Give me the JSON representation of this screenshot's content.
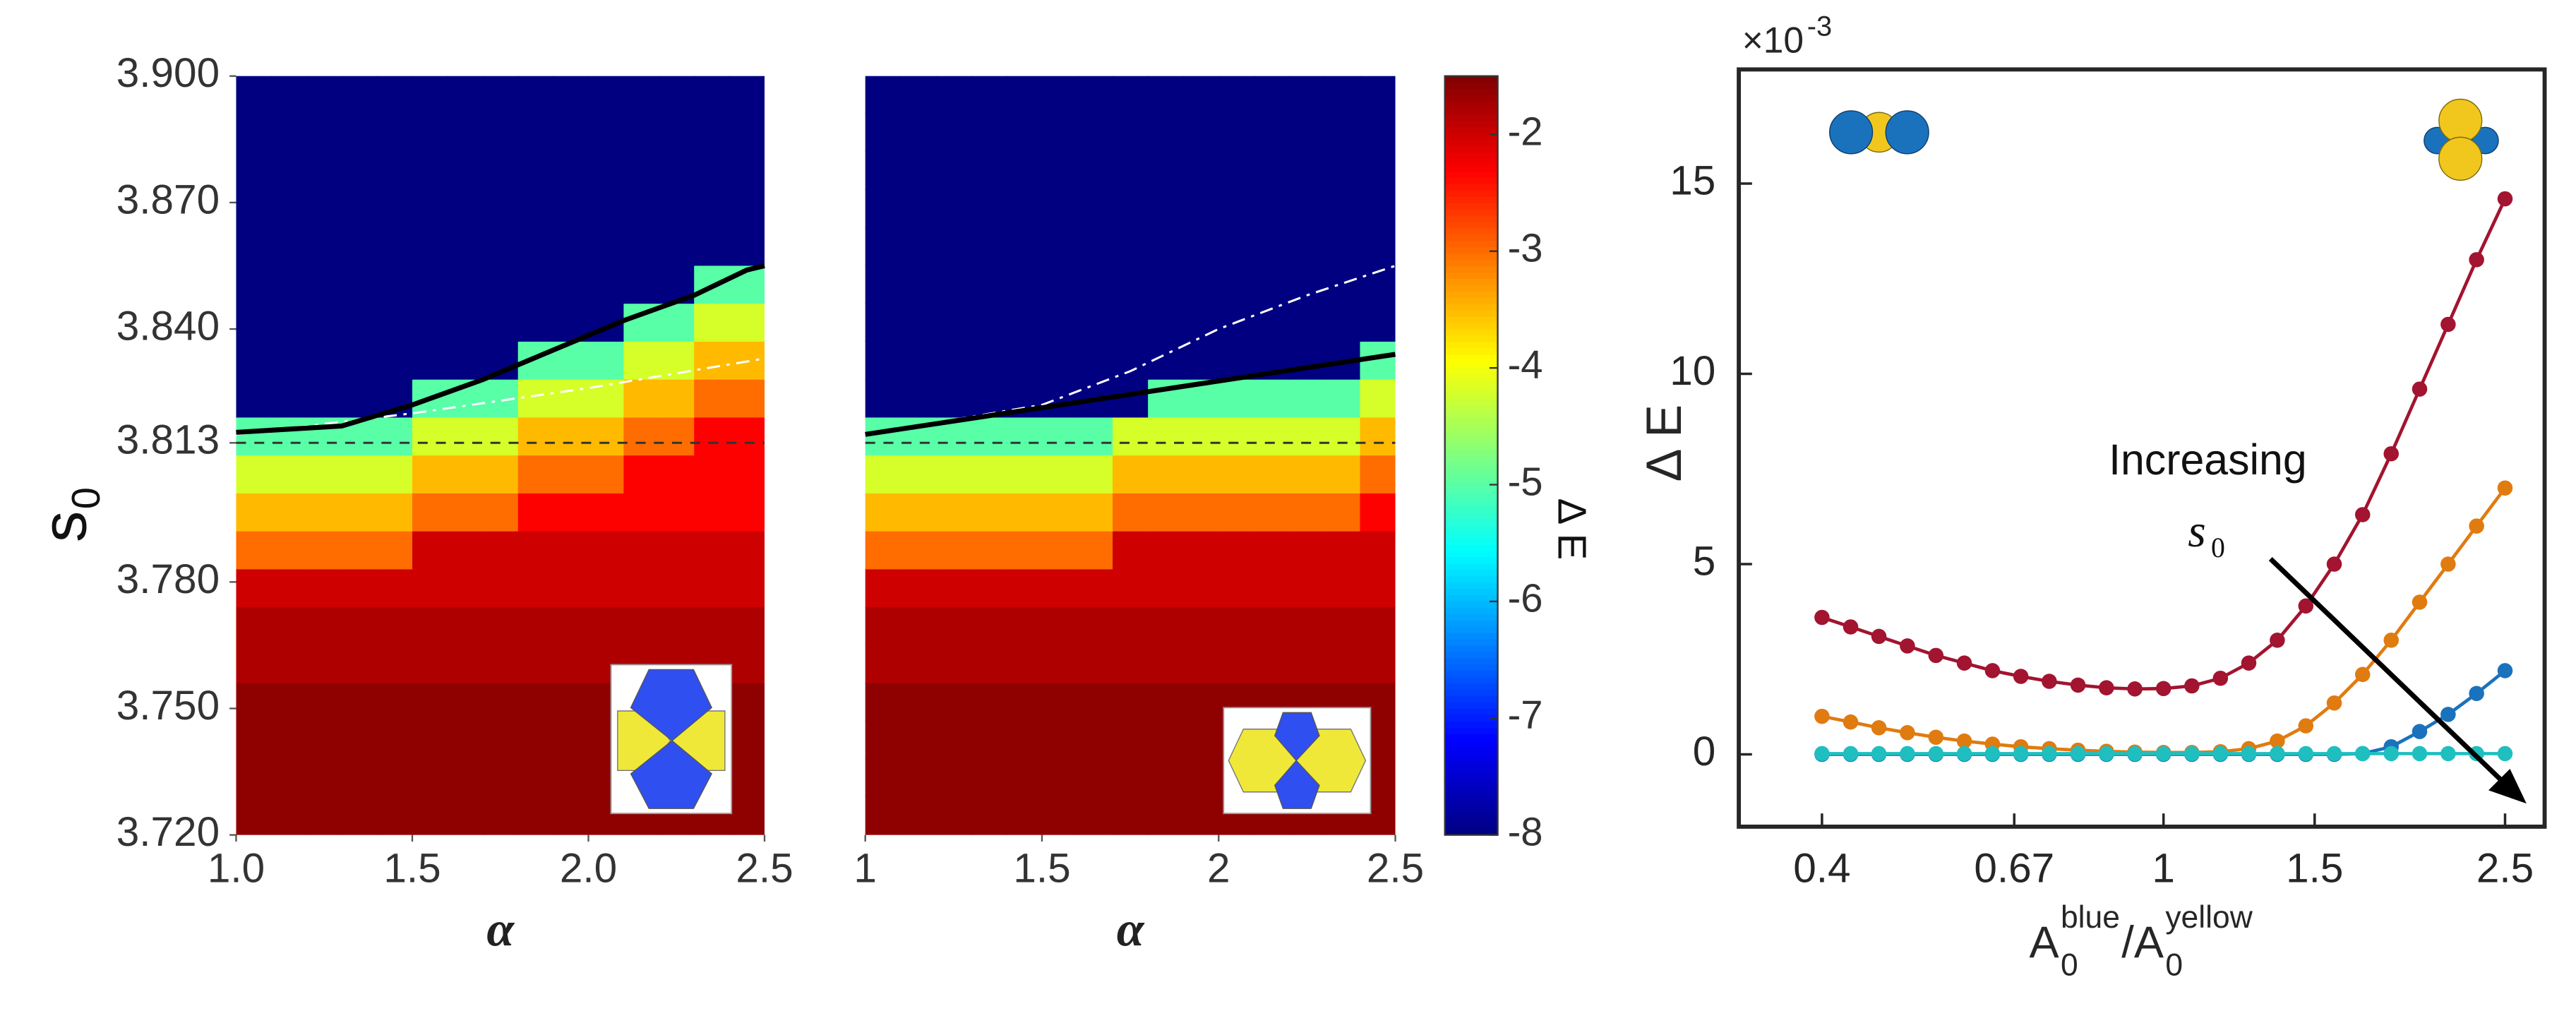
{
  "chart_data": [
    {
      "type": "heatmap",
      "colormap": "jet",
      "xlabel": "α",
      "ylabel": "s",
      "ylabel_sub": "0",
      "xlim": [
        1.0,
        2.5
      ],
      "ylim": [
        3.72,
        3.9
      ],
      "xticks": [
        {
          "value": 1,
          "label": "1.0"
        },
        1.5,
        {
          "value": 2,
          "label": "2.0"
        },
        2.5
      ],
      "yticks": [
        {
          "value": 3.72,
          "label": "3.720"
        },
        {
          "value": 3.75,
          "label": "3.750"
        },
        {
          "value": 3.78,
          "label": "3.780"
        },
        3.813,
        {
          "value": 3.84,
          "label": "3.840"
        },
        {
          "value": 3.87,
          "label": "3.870"
        },
        {
          "value": 3.9,
          "label": "3.900"
        }
      ],
      "x": [
        1.05,
        1.15,
        1.25,
        1.35,
        1.45,
        1.55,
        1.65,
        1.75,
        1.85,
        1.95,
        2.05,
        2.15,
        2.25,
        2.35,
        2.45
      ],
      "y": [
        3.7245,
        3.7335,
        3.7425,
        3.7515,
        3.7605,
        3.7695,
        3.7785,
        3.7875,
        3.7965,
        3.8055,
        3.8145,
        3.8235,
        3.8325,
        3.8415,
        3.8505,
        3.8595,
        3.8685,
        3.8775,
        3.8865,
        3.8955
      ],
      "values": [
        [
          -1.6,
          -1.6,
          -1.6,
          -1.6,
          -1.6,
          -1.6,
          -1.6,
          -1.6,
          -1.6,
          -1.6,
          -1.6,
          -1.6,
          -1.6,
          -1.6,
          -1.6
        ],
        [
          -1.6,
          -1.6,
          -1.6,
          -1.6,
          -1.6,
          -1.6,
          -1.6,
          -1.6,
          -1.6,
          -1.6,
          -1.6,
          -1.6,
          -1.6,
          -1.6,
          -1.6
        ],
        [
          -1.6,
          -1.6,
          -1.6,
          -1.6,
          -1.6,
          -1.6,
          -1.6,
          -1.6,
          -1.6,
          -1.6,
          -1.6,
          -1.6,
          -1.6,
          -1.6,
          -1.6
        ],
        [
          -1.6,
          -1.6,
          -1.6,
          -1.6,
          -1.6,
          -1.6,
          -1.6,
          -1.6,
          -1.6,
          -1.6,
          -1.6,
          -1.6,
          -1.6,
          -1.6,
          -1.6
        ],
        [
          -1.8,
          -1.8,
          -1.8,
          -1.8,
          -1.8,
          -1.8,
          -1.8,
          -1.8,
          -1.8,
          -1.8,
          -1.8,
          -1.8,
          -1.8,
          -1.8,
          -1.8
        ],
        [
          -1.8,
          -1.8,
          -1.8,
          -1.8,
          -1.8,
          -1.8,
          -1.8,
          -1.8,
          -1.8,
          -1.8,
          -1.8,
          -1.8,
          -1.8,
          -1.8,
          -1.8
        ],
        [
          -2,
          -2,
          -2,
          -2,
          -2,
          -2,
          -2,
          -2,
          -2,
          -2,
          -2,
          -2,
          -2,
          -2,
          -2
        ],
        [
          -3,
          -3,
          -3,
          -3,
          -3,
          -2,
          -2,
          -2,
          -2,
          -2,
          -2,
          -2,
          -2,
          -2,
          -2
        ],
        [
          -3.5,
          -3.5,
          -3.5,
          -3.5,
          -3.5,
          -3,
          -3,
          -3,
          -2.3,
          -2.3,
          -2.3,
          -2.3,
          -2.3,
          -2.3,
          -2.3
        ],
        [
          -4.2,
          -4.2,
          -4.2,
          -4.2,
          -4.2,
          -3.5,
          -3.5,
          -3.5,
          -3,
          -3,
          -3,
          -2.3,
          -2.3,
          -2.3,
          -2.3
        ],
        [
          -5,
          -5,
          -5,
          -5,
          -5,
          -4.2,
          -4.2,
          -4.2,
          -3.5,
          -3.5,
          -3.5,
          -3,
          -3,
          -2.3,
          -2.3
        ],
        [
          -8,
          -8,
          -8,
          -8,
          -8,
          -5,
          -5,
          -5,
          -4.2,
          -4.2,
          -4.2,
          -3.5,
          -3.5,
          -3,
          -3
        ],
        [
          -8,
          -8,
          -8,
          -8,
          -8,
          -8,
          -8,
          -8,
          -5,
          -5,
          -5,
          -4.2,
          -4.2,
          -3.5,
          -3.5
        ],
        [
          -8,
          -8,
          -8,
          -8,
          -8,
          -8,
          -8,
          -8,
          -8,
          -8,
          -8,
          -5,
          -5,
          -4.2,
          -4.2
        ],
        [
          -8,
          -8,
          -8,
          -8,
          -8,
          -8,
          -8,
          -8,
          -8,
          -8,
          -8,
          -8,
          -8,
          -5,
          -5
        ],
        [
          -8,
          -8,
          -8,
          -8,
          -8,
          -8,
          -8,
          -8,
          -8,
          -8,
          -8,
          -8,
          -8,
          -8,
          -8
        ],
        [
          -8,
          -8,
          -8,
          -8,
          -8,
          -8,
          -8,
          -8,
          -8,
          -8,
          -8,
          -8,
          -8,
          -8,
          -8
        ],
        [
          -8,
          -8,
          -8,
          -8,
          -8,
          -8,
          -8,
          -8,
          -8,
          -8,
          -8,
          -8,
          -8,
          -8,
          -8
        ],
        [
          -8,
          -8,
          -8,
          -8,
          -8,
          -8,
          -8,
          -8,
          -8,
          -8,
          -8,
          -8,
          -8,
          -8,
          -8
        ],
        [
          -8,
          -8,
          -8,
          -8,
          -8,
          -8,
          -8,
          -8,
          -8,
          -8,
          -8,
          -8,
          -8,
          -8,
          -8
        ]
      ],
      "hline": {
        "y": 3.813,
        "color": "#333333",
        "style": "dashed"
      },
      "lines": [
        {
          "color": "#ffffff",
          "style": "dashdot",
          "x": [
            1.0,
            1.5,
            2.0,
            2.5
          ],
          "y": [
            3.815,
            3.82,
            3.826,
            3.833
          ]
        },
        {
          "color": "#000000",
          "style": "solid",
          "x": [
            1.0,
            1.3,
            1.5,
            1.7,
            1.9,
            2.1,
            2.3,
            2.45,
            2.5
          ],
          "y": [
            3.8155,
            3.817,
            3.822,
            3.828,
            3.835,
            3.842,
            3.848,
            3.854,
            3.855
          ]
        }
      ]
    },
    {
      "type": "heatmap",
      "colormap": "jet",
      "xlabel": "α",
      "xlim": [
        1.0,
        2.5
      ],
      "ylim": [
        3.72,
        3.9
      ],
      "xticks": [
        1,
        1.5,
        2,
        2.5
      ],
      "x": [
        1.05,
        1.15,
        1.25,
        1.35,
        1.45,
        1.55,
        1.65,
        1.75,
        1.85,
        1.95,
        2.05,
        2.15,
        2.25,
        2.35,
        2.45
      ],
      "y": [
        3.7245,
        3.7335,
        3.7425,
        3.7515,
        3.7605,
        3.7695,
        3.7785,
        3.7875,
        3.7965,
        3.8055,
        3.8145,
        3.8235,
        3.8325,
        3.8415,
        3.8505,
        3.8595,
        3.8685,
        3.8775,
        3.8865,
        3.8955
      ],
      "values": [
        [
          -1.6,
          -1.6,
          -1.6,
          -1.6,
          -1.6,
          -1.6,
          -1.6,
          -1.6,
          -1.6,
          -1.6,
          -1.6,
          -1.6,
          -1.6,
          -1.6,
          -1.6
        ],
        [
          -1.6,
          -1.6,
          -1.6,
          -1.6,
          -1.6,
          -1.6,
          -1.6,
          -1.6,
          -1.6,
          -1.6,
          -1.6,
          -1.6,
          -1.6,
          -1.6,
          -1.6
        ],
        [
          -1.6,
          -1.6,
          -1.6,
          -1.6,
          -1.6,
          -1.6,
          -1.6,
          -1.6,
          -1.6,
          -1.6,
          -1.6,
          -1.6,
          -1.6,
          -1.6,
          -1.6
        ],
        [
          -1.6,
          -1.6,
          -1.6,
          -1.6,
          -1.6,
          -1.6,
          -1.6,
          -1.6,
          -1.6,
          -1.6,
          -1.6,
          -1.6,
          -1.6,
          -1.6,
          -1.6
        ],
        [
          -1.8,
          -1.8,
          -1.8,
          -1.8,
          -1.8,
          -1.8,
          -1.8,
          -1.8,
          -1.8,
          -1.8,
          -1.8,
          -1.8,
          -1.8,
          -1.8,
          -1.8
        ],
        [
          -1.8,
          -1.8,
          -1.8,
          -1.8,
          -1.8,
          -1.8,
          -1.8,
          -1.8,
          -1.8,
          -1.8,
          -1.8,
          -1.8,
          -1.8,
          -1.8,
          -1.8
        ],
        [
          -2,
          -2,
          -2,
          -2,
          -2,
          -2,
          -2,
          -2,
          -2,
          -2,
          -2,
          -2,
          -2,
          -2,
          -2
        ],
        [
          -3,
          -3,
          -3,
          -3,
          -3,
          -3,
          -3,
          -2,
          -2,
          -2,
          -2,
          -2,
          -2,
          -2,
          -2
        ],
        [
          -3.5,
          -3.5,
          -3.5,
          -3.5,
          -3.5,
          -3.5,
          -3.5,
          -3,
          -3,
          -3,
          -3,
          -3,
          -3,
          -3,
          -2.3
        ],
        [
          -4.2,
          -4.2,
          -4.2,
          -4.2,
          -4.2,
          -4.2,
          -4.2,
          -3.5,
          -3.5,
          -3.5,
          -3.5,
          -3.5,
          -3.5,
          -3.5,
          -3
        ],
        [
          -5,
          -5,
          -5,
          -5,
          -5,
          -5,
          -5,
          -4.2,
          -4.2,
          -4.2,
          -4.2,
          -4.2,
          -4.2,
          -4.2,
          -3.5
        ],
        [
          -8,
          -8,
          -8,
          -8,
          -8,
          -8,
          -8,
          -8,
          -5,
          -5,
          -5,
          -5,
          -5,
          -5,
          -4.2
        ],
        [
          -8,
          -8,
          -8,
          -8,
          -8,
          -8,
          -8,
          -8,
          -8,
          -8,
          -8,
          -8,
          -8,
          -8,
          -5
        ],
        [
          -8,
          -8,
          -8,
          -8,
          -8,
          -8,
          -8,
          -8,
          -8,
          -8,
          -8,
          -8,
          -8,
          -8,
          -8
        ],
        [
          -8,
          -8,
          -8,
          -8,
          -8,
          -8,
          -8,
          -8,
          -8,
          -8,
          -8,
          -8,
          -8,
          -8,
          -8
        ],
        [
          -8,
          -8,
          -8,
          -8,
          -8,
          -8,
          -8,
          -8,
          -8,
          -8,
          -8,
          -8,
          -8,
          -8,
          -8
        ],
        [
          -8,
          -8,
          -8,
          -8,
          -8,
          -8,
          -8,
          -8,
          -8,
          -8,
          -8,
          -8,
          -8,
          -8,
          -8
        ],
        [
          -8,
          -8,
          -8,
          -8,
          -8,
          -8,
          -8,
          -8,
          -8,
          -8,
          -8,
          -8,
          -8,
          -8,
          -8
        ],
        [
          -8,
          -8,
          -8,
          -8,
          -8,
          -8,
          -8,
          -8,
          -8,
          -8,
          -8,
          -8,
          -8,
          -8,
          -8
        ],
        [
          -8,
          -8,
          -8,
          -8,
          -8,
          -8,
          -8,
          -8,
          -8,
          -8,
          -8,
          -8,
          -8,
          -8,
          -8
        ]
      ],
      "hline": {
        "y": 3.813,
        "color": "#333333",
        "style": "dashed"
      },
      "lines": [
        {
          "color": "#ffffff",
          "style": "dashdot",
          "x": [
            1.0,
            1.5,
            1.75,
            2.0,
            2.25,
            2.5
          ],
          "y": [
            3.815,
            3.822,
            3.83,
            3.84,
            3.848,
            3.855
          ]
        },
        {
          "color": "#000000",
          "style": "solid",
          "x": [
            1.0,
            2.5
          ],
          "y": [
            3.815,
            3.834
          ]
        }
      ],
      "colorbar": {
        "label": "Δ E",
        "clim": [
          -8,
          -1.5
        ],
        "ticks": [
          -8,
          -7,
          -6,
          -5,
          -4,
          -3,
          -2
        ]
      }
    },
    {
      "type": "line",
      "xscale": "log",
      "ylabel": "Δ E",
      "y_multiplier": {
        "base": "×10",
        "exponent": "-3"
      },
      "xlabel_parts": [
        {
          "text": "A"
        },
        {
          "text": "0",
          "shift": "sub"
        },
        {
          "text": "blue",
          "shift": "sup"
        },
        {
          "text": "/A"
        },
        {
          "text": "0",
          "shift": "sub"
        },
        {
          "text": "yellow",
          "shift": "sup"
        }
      ],
      "xlim": [
        0.32,
        2.78
      ],
      "ylim": [
        -1.9,
        18
      ],
      "xticks": [
        0.4,
        0.67,
        1,
        1.5,
        2.5
      ],
      "yticks": [
        0,
        5,
        10,
        15
      ],
      "x": [
        0.4,
        0.432,
        0.466,
        0.503,
        0.543,
        0.586,
        0.632,
        0.682,
        0.736,
        0.795,
        0.858,
        0.926,
        1.0,
        1.079,
        1.165,
        1.257,
        1.357,
        1.465,
        1.581,
        1.706,
        1.842,
        1.988,
        2.146,
        2.316,
        2.5
      ],
      "series": [
        {
          "color": "#a2142f",
          "values": [
            3.6,
            3.35,
            3.1,
            2.85,
            2.6,
            2.4,
            2.2,
            2.05,
            1.92,
            1.82,
            1.75,
            1.72,
            1.73,
            1.8,
            2.0,
            2.4,
            3.0,
            3.9,
            5.0,
            6.3,
            7.9,
            9.6,
            11.3,
            13.0,
            14.6
          ]
        },
        {
          "color": "#e07b10",
          "values": [
            1.0,
            0.85,
            0.7,
            0.57,
            0.45,
            0.35,
            0.27,
            0.2,
            0.15,
            0.11,
            0.08,
            0.06,
            0.05,
            0.05,
            0.07,
            0.15,
            0.35,
            0.75,
            1.35,
            2.1,
            3.0,
            4.0,
            5.0,
            6.0,
            7.0
          ]
        },
        {
          "color": "#1a72bd",
          "values": [
            0,
            0,
            0,
            0,
            0,
            0,
            0,
            0,
            0,
            0,
            0,
            0,
            0,
            0,
            0,
            0,
            0,
            0,
            0,
            0.02,
            0.2,
            0.6,
            1.05,
            1.6,
            2.2
          ]
        },
        {
          "color": "#1fbfc0",
          "values": [
            0.02,
            0.02,
            0.02,
            0.02,
            0.02,
            0.02,
            0.02,
            0.02,
            0.02,
            0.02,
            0.02,
            0.02,
            0.02,
            0.02,
            0.02,
            0.02,
            0.02,
            0.02,
            0.02,
            0.02,
            0.02,
            0.02,
            0.02,
            0.02,
            0.02
          ]
        }
      ],
      "annotation": {
        "line1": "Increasing",
        "var": "s",
        "var_sub": "0"
      }
    }
  ]
}
